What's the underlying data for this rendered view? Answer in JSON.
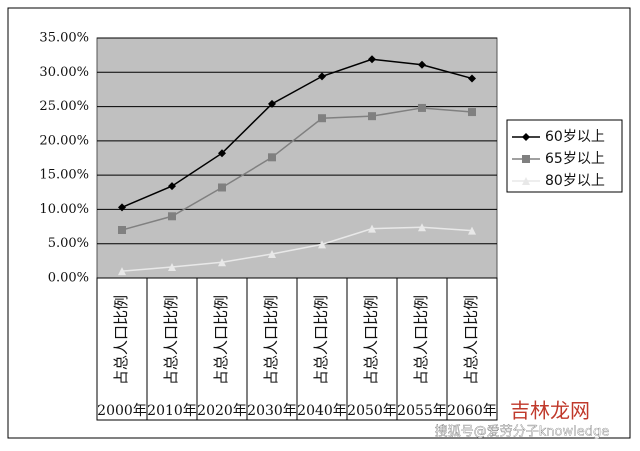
{
  "chart_data": {
    "type": "line",
    "categories": [
      "2000年",
      "2010年",
      "2020年",
      "2030年",
      "2040年",
      "2050年",
      "2055年",
      "2060年"
    ],
    "category_sublabel": "占总人口比例",
    "series": [
      {
        "name": "60岁以上",
        "color": "#000000",
        "marker": "diamond",
        "values": [
          10.3,
          13.4,
          18.2,
          25.4,
          29.4,
          31.9,
          31.1,
          29.1
        ]
      },
      {
        "name": "65岁以上",
        "color": "#808080",
        "marker": "square",
        "values": [
          7.0,
          9.0,
          13.2,
          17.6,
          23.3,
          23.6,
          24.8,
          24.2
        ]
      },
      {
        "name": "80岁以上",
        "color": "#e8e8e8",
        "marker": "triangle",
        "values": [
          1.0,
          1.6,
          2.3,
          3.5,
          4.9,
          7.2,
          7.4,
          6.9
        ]
      }
    ],
    "ylim": [
      0,
      35
    ],
    "yticks": [
      {
        "value": 0,
        "label": "0.00%"
      },
      {
        "value": 5,
        "label": "5.00%"
      },
      {
        "value": 10,
        "label": "10.00%"
      },
      {
        "value": 15,
        "label": "15.00%"
      },
      {
        "value": 20,
        "label": "20.00%"
      },
      {
        "value": 25,
        "label": "25.00%"
      },
      {
        "value": 30,
        "label": "30.00%"
      },
      {
        "value": 35,
        "label": "35.00%"
      }
    ],
    "grid": true,
    "legend": "right",
    "watermarks": [
      "吉林龙网",
      "搜狐号@爱劳分子knowledge"
    ]
  }
}
